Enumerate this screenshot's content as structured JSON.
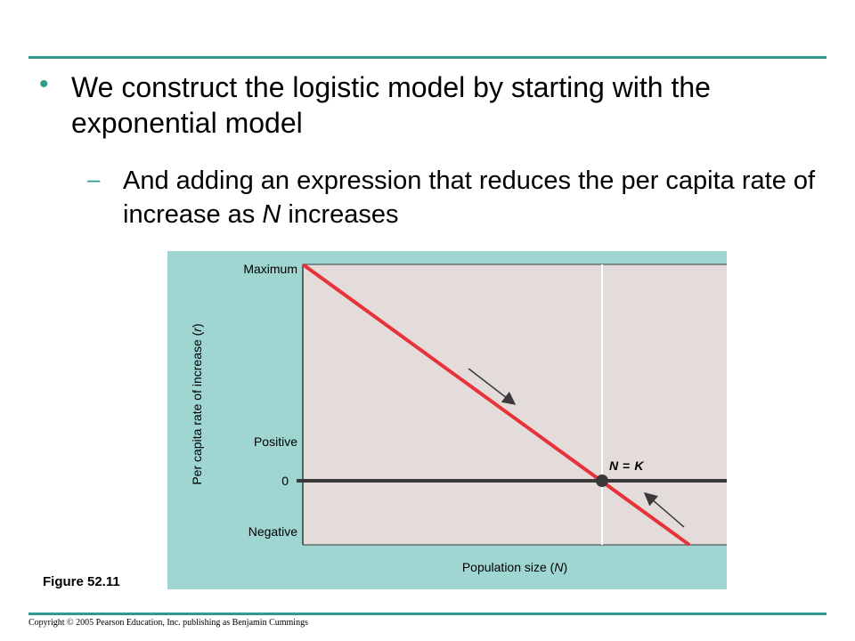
{
  "slide": {
    "bullet_text": "We construct the logistic model by starting with the exponential model",
    "sub_bullet_dash": "–",
    "sub_bullet_text_prefix": "And adding an expression that reduces the per capita rate of increase as ",
    "sub_bullet_text_var": "N",
    "sub_bullet_text_suffix": " increases",
    "figure_label": "Figure 52.11",
    "copyright": "Copyright © 2005 Pearson Education, Inc. publishing as Benjamin Cummings"
  },
  "chart_data": {
    "type": "line",
    "ylabel_prefix": "Per capita rate of increase (",
    "ylabel_var": "r",
    "ylabel_suffix": ")",
    "xlabel_prefix": "Population size (",
    "xlabel_var": "N",
    "xlabel_suffix": ")",
    "y_tick_labels": {
      "maximum": "Maximum",
      "positive": "Positive",
      "zero": "0",
      "negative": "Negative"
    },
    "annotation": {
      "lhs": "N",
      "op": "=",
      "rhs": "K"
    },
    "colors": {
      "panel": "#9fd6d2",
      "plot": "#e4dcda",
      "line": "#e8323a",
      "axis": "#3a3a3a"
    }
  }
}
